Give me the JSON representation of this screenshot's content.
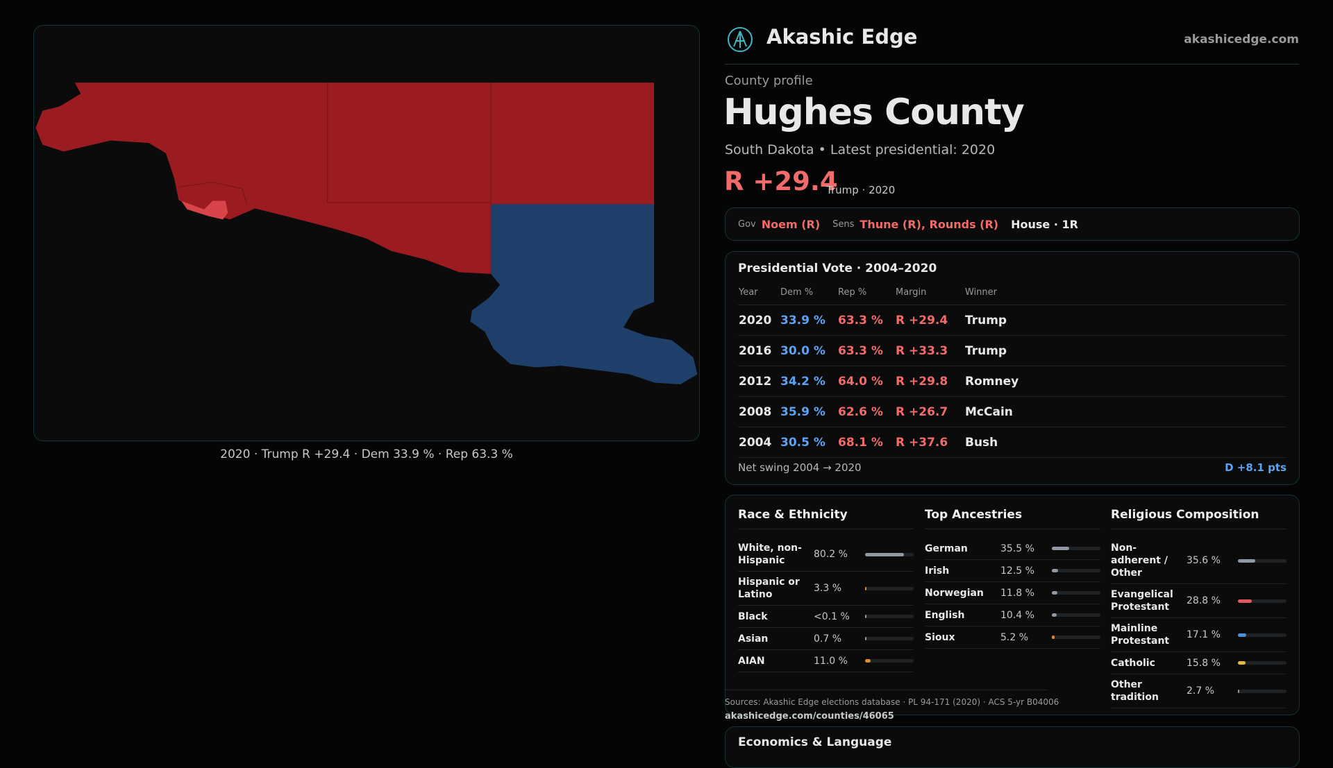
{
  "header": {
    "brand": "Akashic Edge",
    "site": "akashicedge.com"
  },
  "map": {
    "caption": "2020 · Trump R +29.4 · Dem 33.9 % · Rep 63.3 %"
  },
  "profile": {
    "eyebrow": "County profile",
    "title": "Hughes County",
    "subtitle": "South Dakota • Latest presidential: 2020",
    "margin": "R +29.4",
    "margin_note": "Trump · 2020"
  },
  "officials": {
    "gov_label": "Gov",
    "gov": "Noem (R)",
    "sens_label": "Sens",
    "sens": "Thune (R), Rounds (R)",
    "house": "House · 1R"
  },
  "presidential": {
    "title": "Presidential Vote · 2004–2020",
    "columns": [
      "Year",
      "Dem %",
      "Rep %",
      "Margin",
      "Winner"
    ],
    "rows": [
      [
        "2020",
        "33.9 %",
        "63.3 %",
        "R +29.4",
        "Trump"
      ],
      [
        "2016",
        "30.0 %",
        "63.3 %",
        "R +33.3",
        "Trump"
      ],
      [
        "2012",
        "34.2 %",
        "64.0 %",
        "R +29.8",
        "Romney"
      ],
      [
        "2008",
        "35.9 %",
        "62.6 %",
        "R +26.7",
        "McCain"
      ],
      [
        "2004",
        "30.5 %",
        "68.1 %",
        "R +37.6",
        "Bush"
      ]
    ],
    "swing_label": "Net swing 2004 → 2020",
    "swing": "D +8.1 pts"
  },
  "race": {
    "title": "Race & Ethnicity",
    "xlim": [
      0,
      100
    ],
    "rows": [
      {
        "label": "White, non-Hispanic",
        "value": 80.2,
        "value_label": "80.2 %",
        "color": "#8f99a6"
      },
      {
        "label": "Hispanic or Latino",
        "value": 3.3,
        "value_label": "3.3 %",
        "color": "#e08a2c"
      },
      {
        "label": "Black",
        "value": 0,
        "value_label": "<0.1 %",
        "color": "#8f99a6"
      },
      {
        "label": "Asian",
        "value": 0.7,
        "value_label": "0.7 %",
        "color": "#8f99a6"
      },
      {
        "label": "AIAN",
        "value": 11.0,
        "value_label": "11.0 %",
        "color": "#e08a2c"
      }
    ]
  },
  "ancestry": {
    "title": "Top Ancestries",
    "xlim": [
      0,
      100
    ],
    "rows": [
      {
        "label": "German",
        "value": 35.5,
        "value_label": "35.5 %",
        "color": "#8f99a6"
      },
      {
        "label": "Irish",
        "value": 12.5,
        "value_label": "12.5 %",
        "color": "#8f99a6"
      },
      {
        "label": "Norwegian",
        "value": 11.8,
        "value_label": "11.8 %",
        "color": "#8f99a6"
      },
      {
        "label": "English",
        "value": 10.4,
        "value_label": "10.4 %",
        "color": "#8f99a6"
      },
      {
        "label": "Sioux",
        "value": 5.2,
        "value_label": "5.2 %",
        "color": "#e08a2c"
      }
    ]
  },
  "religion": {
    "title": "Religious Composition",
    "xlim": [
      0,
      100
    ],
    "rows": [
      {
        "label": "Non-adherent / Other",
        "value": 35.6,
        "value_label": "35.6 %",
        "color": "#8f99a6"
      },
      {
        "label": "Evangelical Protestant",
        "value": 28.8,
        "value_label": "28.8 %",
        "color": "#e05a5f"
      },
      {
        "label": "Mainline Protestant",
        "value": 17.1,
        "value_label": "17.1 %",
        "color": "#4f8fe0"
      },
      {
        "label": "Catholic",
        "value": 15.8,
        "value_label": "15.8 %",
        "color": "#e8b83a"
      },
      {
        "label": "Other tradition",
        "value": 2.7,
        "value_label": "2.7 %",
        "color": "#8f99a6"
      }
    ]
  },
  "sources": {
    "text": "Sources: Akashic Edge elections database · PL 94-171 (2020) · ACS 5-yr B04006",
    "link": "akashicedge.com/counties/46065"
  },
  "economics": {
    "title": "Economics & Language"
  }
}
